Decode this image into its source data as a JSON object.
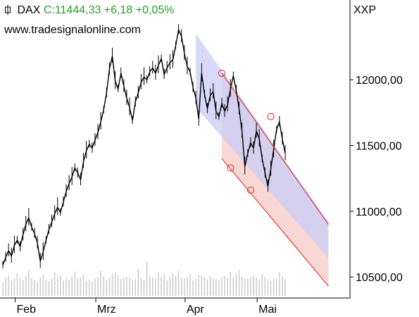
{
  "header": {
    "symbol": "DAX",
    "quote": "C:11444,33 +6,18 +0,05%",
    "website": "www.tradesignalonline.com",
    "instrument": "XXP"
  },
  "colors": {
    "price": "#000000",
    "change_positive": "#21a121",
    "channel_line": "#e0201a",
    "channel_fill_red": "#f6c9c6",
    "channel_fill_blue": "#c8cdf5",
    "volume": "#cfcfcf"
  },
  "chart_data": {
    "type": "line",
    "title": "",
    "xlabel": "",
    "ylabel": "",
    "ylim": [
      10400,
      12430
    ],
    "x_tick_labels": [
      "Feb",
      "Mrz",
      "Apr",
      "Mai"
    ],
    "y_tick_labels": [
      "10500,00",
      "11000,00",
      "11500,00",
      "12000,00"
    ],
    "y_ticks": [
      10500,
      11000,
      11500,
      12000
    ],
    "series": [
      {
        "values": [
          10590,
          10650,
          10700,
          10660,
          10740,
          10780,
          10730,
          10820,
          10900,
          10950,
          10880,
          10830,
          10760,
          10620,
          10690,
          10780,
          10860,
          10920,
          10980,
          11030,
          10990,
          11070,
          11150,
          11210,
          11260,
          11330,
          11290,
          11240,
          11380,
          11460,
          11510,
          11480,
          11540,
          11600,
          11680,
          11770,
          11900,
          12080,
          12180,
          11990,
          11930,
          12050,
          11950,
          11860,
          11790,
          11690,
          11830,
          11900,
          11980,
          12020,
          12000,
          12060,
          12090,
          12050,
          12110,
          12160,
          12040,
          12090,
          12130,
          12150,
          12260,
          12380,
          12330,
          12200,
          12100,
          12060,
          11940,
          11860,
          11700,
          12050,
          11890,
          11780,
          11880,
          11910,
          11760,
          11720,
          11820,
          11760,
          11810,
          11930,
          12030,
          11920,
          11780,
          11610,
          11340,
          11440,
          11520,
          11480,
          11610,
          11550,
          11400,
          11290,
          11190,
          11320,
          11470,
          11620,
          11680,
          11550,
          11440
        ]
      }
    ],
    "volume": [
      35,
      48,
      52,
      40,
      44,
      58,
      46,
      42,
      50,
      66,
      45,
      40,
      36,
      48,
      55,
      42,
      38,
      44,
      60,
      48,
      52,
      40,
      46,
      42,
      50,
      63,
      45,
      48,
      56,
      40,
      42,
      38,
      44,
      48,
      64,
      50,
      42,
      46,
      56,
      60,
      54,
      45,
      48,
      50,
      47,
      42,
      44,
      70,
      46,
      42,
      88,
      52,
      48,
      44,
      60,
      48,
      56,
      40,
      48,
      58,
      52,
      64,
      46,
      44,
      48,
      56,
      40,
      44,
      54,
      52,
      48,
      42,
      50,
      46,
      44,
      40,
      48,
      52,
      46,
      62,
      48,
      56,
      66,
      50,
      46,
      44,
      48,
      52,
      46,
      42,
      56,
      50,
      44,
      40,
      46,
      44,
      62,
      50,
      44
    ],
    "channel": {
      "upper_line": [
        [
          76,
          12050
        ],
        [
          113,
          10900
        ]
      ],
      "lower_line": [
        [
          76,
          11400
        ],
        [
          113,
          10430
        ]
      ],
      "anchor_points": [
        [
          76,
          12050
        ],
        [
          79,
          11330
        ],
        [
          86,
          11160
        ],
        [
          93,
          11720
        ]
      ]
    }
  }
}
